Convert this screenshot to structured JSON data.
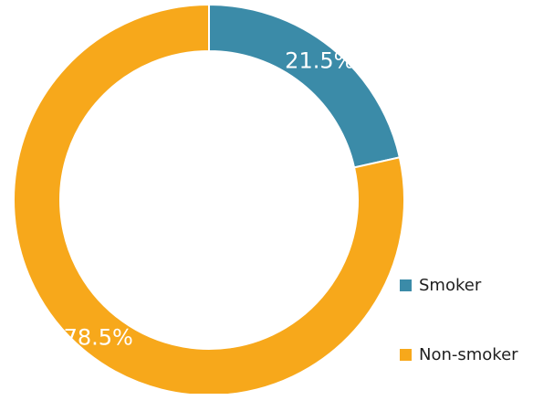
{
  "chart_data": {
    "type": "pie",
    "variant": "donut",
    "title": "",
    "categories": [
      "Smoker",
      "Non-smoker"
    ],
    "values": [
      21.5,
      78.5
    ],
    "value_labels": [
      "21.5%",
      "78.5%"
    ],
    "colors": [
      "#3b8ba8",
      "#f7a81b"
    ],
    "legend": {
      "position": "bottom-right",
      "items": [
        {
          "label": "Smoker",
          "color": "#3b8ba8"
        },
        {
          "label": "Non-smoker",
          "color": "#f7a81b"
        }
      ]
    }
  }
}
